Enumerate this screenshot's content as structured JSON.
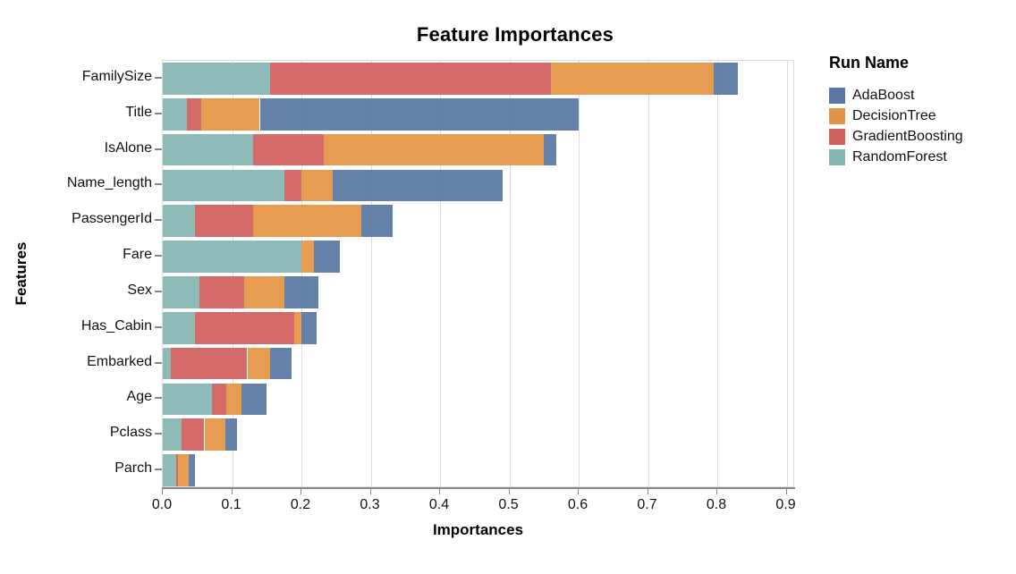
{
  "chart_data": {
    "type": "bar",
    "orientation": "horizontal",
    "stacked": true,
    "title": "Feature Importances",
    "xlabel": "Importances",
    "ylabel": "Features",
    "legend_title": "Run Name",
    "legend_position": "right",
    "grid": true,
    "xlim": [
      0,
      0.9123
    ],
    "x_tick_values": [
      0.0,
      0.1,
      0.2,
      0.3,
      0.4,
      0.5,
      0.6,
      0.7,
      0.8,
      0.9
    ],
    "x_tick_labels": [
      "0.0",
      "0.1",
      "0.2",
      "0.3",
      "0.4",
      "0.5",
      "0.6",
      "0.7",
      "0.8",
      "0.9"
    ],
    "categories": [
      "FamilySize",
      "Title",
      "IsAlone",
      "Name_length",
      "PassengerId",
      "Fare",
      "Sex",
      "Has_Cabin",
      "Embarked",
      "Age",
      "Pclass",
      "Parch"
    ],
    "legend_entries": [
      "AdaBoost",
      "DecisionTree",
      "GradientBoosting",
      "RandomForest"
    ],
    "series": [
      {
        "name": "RandomForest",
        "color": "#85b6b2",
        "values": [
          0.155,
          0.035,
          0.13,
          0.175,
          0.047,
          0.2,
          0.053,
          0.046,
          0.012,
          0.071,
          0.027,
          0.019
        ]
      },
      {
        "name": "GradientBoosting",
        "color": "#d1605e",
        "values": [
          0.405,
          0.02,
          0.102,
          0.025,
          0.083,
          0.0,
          0.064,
          0.144,
          0.11,
          0.021,
          0.033,
          0.003
        ]
      },
      {
        "name": "DecisionTree",
        "color": "#e49444",
        "values": [
          0.235,
          0.085,
          0.318,
          0.045,
          0.156,
          0.018,
          0.059,
          0.01,
          0.033,
          0.022,
          0.03,
          0.016
        ]
      },
      {
        "name": "AdaBoost",
        "color": "#5878a3",
        "values": [
          0.035,
          0.46,
          0.018,
          0.245,
          0.046,
          0.037,
          0.049,
          0.022,
          0.031,
          0.036,
          0.017,
          0.008
        ]
      }
    ],
    "colors": {
      "AdaBoost": "#5878a3",
      "DecisionTree": "#e49444",
      "GradientBoosting": "#d1605e",
      "RandomForest": "#85b6b2"
    }
  }
}
